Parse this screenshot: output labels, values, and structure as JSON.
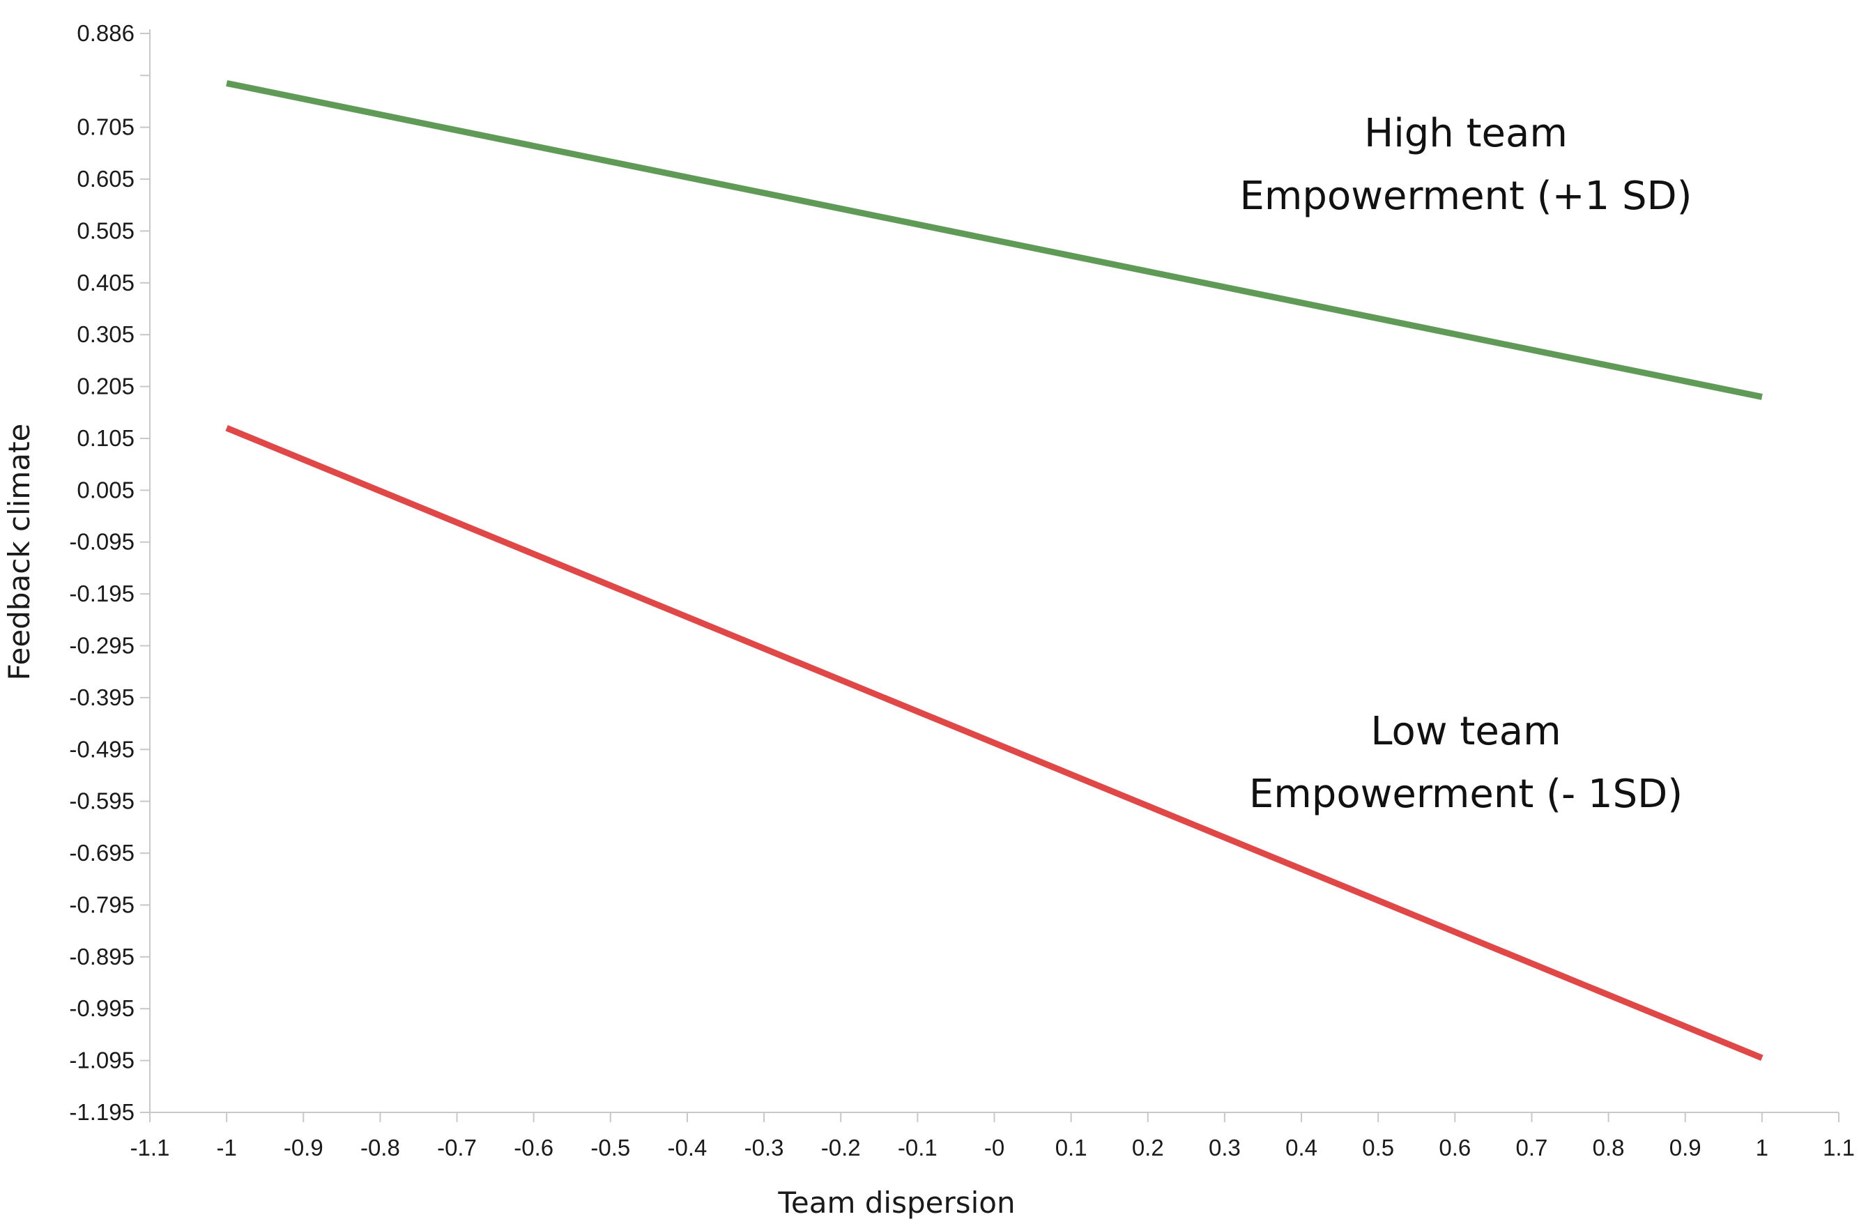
{
  "chart_data": {
    "type": "line",
    "xlabel": "Team dispersion",
    "ylabel": "Feedback climate",
    "xlim": [
      -1.1,
      1.1
    ],
    "ylim": [
      -1.195,
      0.886
    ],
    "x_ticks": [
      "-1.1",
      "-1",
      "-0.9",
      "-0.8",
      "-0.7",
      "-0.6",
      "-0.5",
      "-0.4",
      "-0.3",
      "-0.2",
      "-0.1",
      "-0",
      "0.1",
      "0.2",
      "0.3",
      "0.4",
      "0.5",
      "0.6",
      "0.7",
      "0.8",
      "0.9",
      "1",
      "1.1"
    ],
    "y_ticks": [
      "0.886",
      "0.705",
      "0.605",
      "0.505",
      "0.405",
      "0.305",
      "0.205",
      "0.105",
      "0.005",
      "-0.095",
      "-0.195",
      "-0.295",
      "-0.395",
      "-0.495",
      "-0.595",
      "-0.695",
      "-0.795",
      "-0.895",
      "-0.995",
      "-1.095",
      "-1.195"
    ],
    "grid": false,
    "series": [
      {
        "name": "High team Empowerment (+1 SD)",
        "label_lines": [
          "High team",
          "Empowerment (+1 SD)"
        ],
        "color": "#5f9a57",
        "x": [
          -1,
          1
        ],
        "y": [
          0.79,
          0.185
        ]
      },
      {
        "name": "Low team Empowerment (- 1SD)",
        "label_lines": [
          "Low team",
          "Empowerment (- 1SD)"
        ],
        "color": "#e04848",
        "x": [
          -1,
          1
        ],
        "y": [
          0.125,
          -1.09
        ]
      }
    ]
  }
}
